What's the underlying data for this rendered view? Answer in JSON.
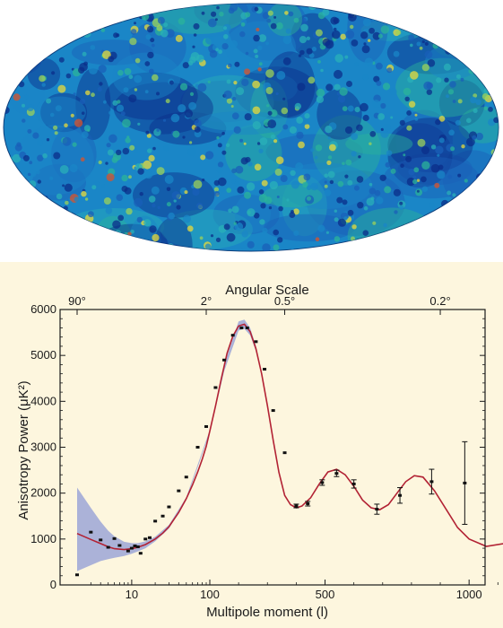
{
  "colors": {
    "panel_bg": "#fdf6de",
    "model_line": "#b22234",
    "error_band": "#8f9bd6",
    "data_points": "#111111",
    "sky_deep": "#0b2d8a",
    "sky_mid": "#1a86c7",
    "sky_green": "#2bb39a",
    "sky_yellow": "#e8d93a",
    "sky_red": "#d9532b"
  },
  "sky_map": {
    "type": "full-sky-mollweide",
    "palette": [
      "#0b2d8a",
      "#1a5fb8",
      "#1a86c7",
      "#29b0b8",
      "#2bb39a",
      "#9cd25a",
      "#e8d93a",
      "#d9532b"
    ]
  },
  "chart_data": {
    "type": "scatter",
    "xlabel": "Multipole moment (l)",
    "ylabel": "Anisotropy Power (μK²)",
    "top_axis_label": "Angular Scale",
    "x_scale": "mixed-log-linear",
    "xlim": [
      2,
      1200
    ],
    "ylim": [
      0,
      6000
    ],
    "x_ticks": [
      10,
      100,
      500,
      1000
    ],
    "y_ticks": [
      0,
      1000,
      2000,
      3000,
      4000,
      5000,
      6000
    ],
    "top_ticks": [
      {
        "label": "90°",
        "l": 2
      },
      {
        "label": "2°",
        "l": 90
      },
      {
        "label": "0.5°",
        "l": 360
      },
      {
        "label": "0.2°",
        "l": 900
      }
    ],
    "grid": false,
    "series": [
      {
        "kind": "points",
        "points": [
          {
            "x": 2,
            "y": 220,
            "err": 0
          },
          {
            "x": 3,
            "y": 1150,
            "err": 0
          },
          {
            "x": 4,
            "y": 980,
            "err": 0
          },
          {
            "x": 5,
            "y": 820,
            "err": 0
          },
          {
            "x": 6,
            "y": 1010,
            "err": 0
          },
          {
            "x": 7,
            "y": 860,
            "err": 0
          },
          {
            "x": 9,
            "y": 740,
            "err": 0
          },
          {
            "x": 10,
            "y": 800,
            "err": 0
          },
          {
            "x": 11,
            "y": 850,
            "err": 0
          },
          {
            "x": 12,
            "y": 830,
            "err": 0
          },
          {
            "x": 13,
            "y": 690,
            "err": 0
          },
          {
            "x": 15,
            "y": 1000,
            "err": 0
          },
          {
            "x": 17,
            "y": 1030,
            "err": 0
          },
          {
            "x": 20,
            "y": 1390,
            "err": 0
          },
          {
            "x": 25,
            "y": 1500,
            "err": 0
          },
          {
            "x": 30,
            "y": 1700,
            "err": 0
          },
          {
            "x": 40,
            "y": 2050,
            "err": 0
          },
          {
            "x": 50,
            "y": 2350,
            "err": 0
          },
          {
            "x": 70,
            "y": 3000,
            "err": 0
          },
          {
            "x": 90,
            "y": 3450,
            "err": 0
          },
          {
            "x": 120,
            "y": 4300,
            "err": 0
          },
          {
            "x": 150,
            "y": 4900,
            "err": 0
          },
          {
            "x": 180,
            "y": 5440,
            "err": 0
          },
          {
            "x": 210,
            "y": 5600,
            "err": 0
          },
          {
            "x": 230,
            "y": 5600,
            "err": 0
          },
          {
            "x": 260,
            "y": 5300,
            "err": 0
          },
          {
            "x": 290,
            "y": 4700,
            "err": 0
          },
          {
            "x": 320,
            "y": 3800,
            "err": 0
          },
          {
            "x": 360,
            "y": 2880,
            "err": 0
          },
          {
            "x": 400,
            "y": 1720,
            "err": 40
          },
          {
            "x": 440,
            "y": 1770,
            "err": 50
          },
          {
            "x": 490,
            "y": 2230,
            "err": 60
          },
          {
            "x": 540,
            "y": 2430,
            "err": 70
          },
          {
            "x": 600,
            "y": 2200,
            "err": 90
          },
          {
            "x": 680,
            "y": 1650,
            "err": 110
          },
          {
            "x": 760,
            "y": 1950,
            "err": 170
          },
          {
            "x": 870,
            "y": 2250,
            "err": 270
          },
          {
            "x": 985,
            "y": 2220,
            "err": 900
          }
        ]
      },
      {
        "kind": "model-curve",
        "points": [
          [
            2,
            1120
          ],
          [
            3,
            990
          ],
          [
            4,
            900
          ],
          [
            5,
            830
          ],
          [
            6,
            790
          ],
          [
            8,
            770
          ],
          [
            10,
            790
          ],
          [
            12,
            820
          ],
          [
            15,
            880
          ],
          [
            20,
            1000
          ],
          [
            25,
            1130
          ],
          [
            30,
            1270
          ],
          [
            40,
            1580
          ],
          [
            50,
            1880
          ],
          [
            60,
            2180
          ],
          [
            70,
            2460
          ],
          [
            80,
            2740
          ],
          [
            90,
            3020
          ],
          [
            100,
            3350
          ],
          [
            120,
            3900
          ],
          [
            140,
            4500
          ],
          [
            160,
            5050
          ],
          [
            180,
            5420
          ],
          [
            200,
            5640
          ],
          [
            220,
            5680
          ],
          [
            240,
            5520
          ],
          [
            260,
            5150
          ],
          [
            280,
            4600
          ],
          [
            300,
            3900
          ],
          [
            320,
            3150
          ],
          [
            340,
            2450
          ],
          [
            360,
            1950
          ],
          [
            380,
            1750
          ],
          [
            400,
            1680
          ],
          [
            420,
            1720
          ],
          [
            450,
            1900
          ],
          [
            480,
            2200
          ],
          [
            510,
            2460
          ],
          [
            540,
            2520
          ],
          [
            570,
            2400
          ],
          [
            600,
            2150
          ],
          [
            630,
            1850
          ],
          [
            660,
            1680
          ],
          [
            690,
            1640
          ],
          [
            720,
            1750
          ],
          [
            750,
            2000
          ],
          [
            780,
            2250
          ],
          [
            810,
            2380
          ],
          [
            840,
            2350
          ],
          [
            880,
            2050
          ],
          [
            920,
            1650
          ],
          [
            960,
            1250
          ],
          [
            1000,
            1000
          ],
          [
            1060,
            840
          ],
          [
            1120,
            900
          ],
          [
            1200,
            1020
          ]
        ]
      },
      {
        "kind": "cosmic-variance-band",
        "upper": [
          [
            2,
            2120
          ],
          [
            3,
            1680
          ],
          [
            4,
            1380
          ],
          [
            5,
            1180
          ],
          [
            6,
            1060
          ],
          [
            8,
            940
          ],
          [
            10,
            910
          ],
          [
            12,
            910
          ],
          [
            15,
            950
          ],
          [
            20,
            1050
          ],
          [
            30,
            1310
          ],
          [
            50,
            1910
          ],
          [
            100,
            3380
          ],
          [
            150,
            4800
          ],
          [
            200,
            5740
          ],
          [
            220,
            5780
          ],
          [
            240,
            5600
          ],
          [
            260,
            5210
          ]
        ],
        "lower": [
          [
            2,
            300
          ],
          [
            3,
            430
          ],
          [
            4,
            520
          ],
          [
            5,
            560
          ],
          [
            6,
            590
          ],
          [
            8,
            630
          ],
          [
            10,
            680
          ],
          [
            12,
            730
          ],
          [
            15,
            800
          ],
          [
            20,
            950
          ],
          [
            30,
            1230
          ],
          [
            50,
            1850
          ],
          [
            100,
            3320
          ],
          [
            150,
            4660
          ],
          [
            200,
            5540
          ],
          [
            220,
            5580
          ],
          [
            240,
            5440
          ],
          [
            260,
            5090
          ]
        ]
      }
    ]
  }
}
